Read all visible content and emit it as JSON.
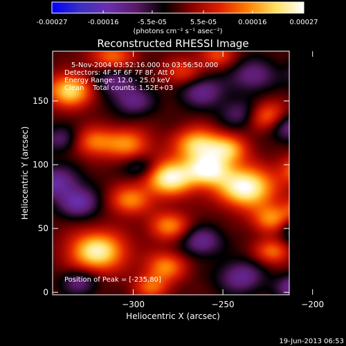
{
  "chart_data": {
    "type": "heatmap",
    "title": "Reconstructed RHESSI Image",
    "colorbar": {
      "tick_labels": [
        "-0.00027",
        "-0.00016",
        "-5.5e-05",
        "5.5e-05",
        "0.00016",
        "0.00027"
      ],
      "min": -0.00027,
      "max": 0.00027,
      "unit_label": "(photons cm⁻² s⁻¹ asec⁻²)",
      "colors": [
        "#0000ff",
        "#3a2fc0",
        "#6a2fb0",
        "#5a1a6a",
        "#000000",
        "#8a0000",
        "#e02000",
        "#ff8000",
        "#ffe060",
        "#ffffff"
      ]
    },
    "xlabel": "Heliocentric X (arcsec)",
    "ylabel": "Heliocentric Y (arcsec)",
    "xlim": [
      -345,
      -213
    ],
    "ylim": [
      -2,
      189
    ],
    "x_ticks": [
      -300,
      -250,
      -200
    ],
    "y_ticks": [
      0,
      50,
      100,
      150
    ],
    "annotations": [
      "5-Nov-2004 03:52:16.000 to 03:56:50.000",
      "Detectors: 4F 5F 6F 7F 8F, Att 0",
      "Energy Range: 12.0 - 25.0 keV",
      "Clean    Total counts: 1.52E+03",
      "Position of Peak = [-235,80]"
    ],
    "peak": [
      -235,
      80
    ],
    "sources": [
      {
        "x": -237,
        "y": 82,
        "amp": 1.0,
        "s": 11
      },
      {
        "x": -258,
        "y": 96,
        "amp": 0.85,
        "s": 9
      },
      {
        "x": -280,
        "y": 90,
        "amp": 0.95,
        "s": 10
      },
      {
        "x": -264,
        "y": 116,
        "amp": 0.75,
        "s": 9
      },
      {
        "x": -247,
        "y": 112,
        "amp": 0.6,
        "s": 8
      },
      {
        "x": -320,
        "y": 32,
        "amp": 0.9,
        "s": 11
      },
      {
        "x": -335,
        "y": 158,
        "amp": 0.8,
        "s": 9
      },
      {
        "x": -312,
        "y": 183,
        "amp": 0.55,
        "s": 9
      },
      {
        "x": -322,
        "y": 118,
        "amp": 0.5,
        "s": 8
      },
      {
        "x": -303,
        "y": 116,
        "amp": 0.55,
        "s": 9
      },
      {
        "x": -302,
        "y": 72,
        "amp": 0.55,
        "s": 8
      },
      {
        "x": -280,
        "y": 52,
        "amp": 0.55,
        "s": 8
      },
      {
        "x": -282,
        "y": 20,
        "amp": 0.55,
        "s": 8
      },
      {
        "x": -290,
        "y": 4,
        "amp": 0.45,
        "s": 7
      },
      {
        "x": -222,
        "y": 57,
        "amp": 0.6,
        "s": 8
      },
      {
        "x": -203,
        "y": 64,
        "amp": 0.7,
        "s": 8
      },
      {
        "x": -207,
        "y": 96,
        "amp": 0.55,
        "s": 8
      },
      {
        "x": -225,
        "y": 138,
        "amp": 0.55,
        "s": 8
      },
      {
        "x": -183,
        "y": 150,
        "amp": 0.6,
        "s": 8
      },
      {
        "x": -222,
        "y": 32,
        "amp": 0.5,
        "s": 7
      },
      {
        "x": -195,
        "y": 12,
        "amp": 0.5,
        "s": 7
      },
      {
        "x": -272,
        "y": 172,
        "amp": 0.4,
        "s": 8
      },
      {
        "x": -253,
        "y": 186,
        "amp": 0.4,
        "s": 7
      },
      {
        "x": -343,
        "y": 86,
        "amp": -0.5,
        "s": 9
      },
      {
        "x": -312,
        "y": 168,
        "amp": -0.45,
        "s": 9
      },
      {
        "x": -262,
        "y": 158,
        "amp": -0.45,
        "s": 9
      },
      {
        "x": -233,
        "y": 170,
        "amp": -0.4,
        "s": 9
      },
      {
        "x": -200,
        "y": 172,
        "amp": -0.6,
        "s": 8
      },
      {
        "x": -213,
        "y": 130,
        "amp": -0.45,
        "s": 8
      },
      {
        "x": -187,
        "y": 112,
        "amp": -0.55,
        "s": 9
      },
      {
        "x": -208,
        "y": 50,
        "amp": -0.55,
        "s": 8
      },
      {
        "x": -190,
        "y": 28,
        "amp": -0.45,
        "s": 8
      },
      {
        "x": -240,
        "y": 12,
        "amp": -0.45,
        "s": 9
      },
      {
        "x": -262,
        "y": 40,
        "amp": -0.45,
        "s": 8
      },
      {
        "x": -295,
        "y": 98,
        "amp": -0.4,
        "s": 7
      },
      {
        "x": -330,
        "y": 70,
        "amp": -0.5,
        "s": 8
      },
      {
        "x": -300,
        "y": 150,
        "amp": -0.4,
        "s": 8
      },
      {
        "x": -240,
        "y": 140,
        "amp": -0.35,
        "s": 8
      },
      {
        "x": -340,
        "y": 120,
        "amp": -0.35,
        "s": 7
      },
      {
        "x": -210,
        "y": 4,
        "amp": -0.5,
        "s": 7
      },
      {
        "x": -330,
        "y": 8,
        "amp": -0.4,
        "s": 7
      }
    ]
  },
  "footer_date": "19-Jun-2013 06:53"
}
